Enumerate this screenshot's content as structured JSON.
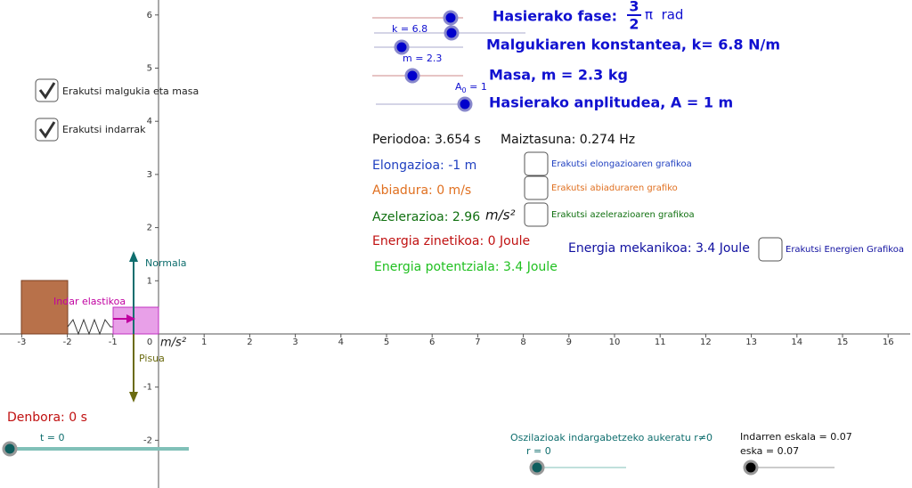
{
  "axes": {
    "x_ticks": [
      -3,
      -2,
      -1,
      0,
      1,
      2,
      3,
      4,
      5,
      6,
      7,
      8,
      9,
      10,
      11,
      12,
      13,
      14,
      15,
      16
    ],
    "y_ticks": [
      -2,
      -1,
      1,
      2,
      3,
      4,
      5,
      6
    ],
    "unit": "m/s²"
  },
  "header": {
    "phase_label": "Hasierako fase:",
    "phase_num": "3",
    "phase_den": "2",
    "phase_unit": "π  rad",
    "spring": "Malgukiaren konstantea, k= 6.8 N/m",
    "mass": "Masa, m = 2.3 kg",
    "amplitude": "Hasierako anplitudea, A = 1 m"
  },
  "sliders": {
    "k": "k = 6.8",
    "m": "m = 2.3",
    "a": "A",
    "a_sub": "0",
    "a_val": " = 1",
    "t": "t = 0",
    "r": "r = 0",
    "eska": "eska = 0.07"
  },
  "checks": {
    "spring_mass": "Erakutsi malgukia eta masa",
    "forces": "Erakutsi indarrak",
    "elong": "Erakutsi elongazioaren grafikoa",
    "speed": "Erakutsi abiaduraren grafiko",
    "accel": "Erakutsi azelerazioaren grafikoa",
    "energy": "Erakutsi Energien Grafikoa"
  },
  "info": {
    "period": "Periodoa: 3.654 s",
    "freq": "Maiztasuna: 0.274 Hz",
    "elong": "Elongazioa: -1 m",
    "speed": "Abiadura: 0 m/s",
    "accel": "Azelerazioa: 2.96",
    "accel_unit": "m/s²",
    "kinetic": "Energia zinetikoa: 0 Joule",
    "potential": "Energia potentziala: 3.4 Joule",
    "mechanical": "Energia mekanikoa: 3.4 Joule"
  },
  "forces": {
    "normal": "Normala",
    "elastic": "Indar elastikoa",
    "weight": "Pisua"
  },
  "bottom": {
    "time": "Denbora: 0 s",
    "damping": "Oszilazioak indargabetzeko aukeratu r≠0",
    "scale": "Indarren eskala = 0.07"
  }
}
